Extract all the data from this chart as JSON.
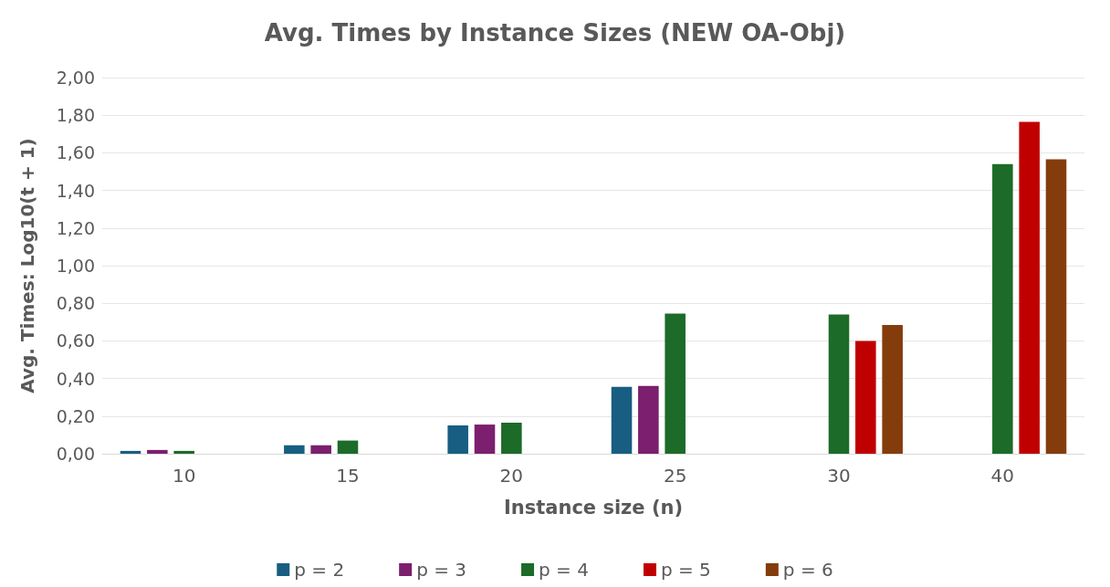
{
  "chart_data": {
    "type": "bar",
    "title": "Avg. Times by Instance Sizes (NEW OA-Obj)",
    "xlabel": "Instance size (n)",
    "ylabel": "Avg. Times: Log10(t + 1)",
    "categories": [
      "10",
      "15",
      "20",
      "25",
      "30",
      "40"
    ],
    "series": [
      {
        "name": "p = 2",
        "color": "#175e82",
        "values": [
          0.015,
          0.045,
          0.15,
          0.355,
          null,
          null
        ]
      },
      {
        "name": "p = 3",
        "color": "#7b1f6e",
        "values": [
          0.02,
          0.045,
          0.155,
          0.36,
          null,
          null
        ]
      },
      {
        "name": "p = 4",
        "color": "#1c6b28",
        "values": [
          0.015,
          0.07,
          0.165,
          0.745,
          0.74,
          1.54
        ]
      },
      {
        "name": "p = 5",
        "color": "#c00000",
        "values": [
          null,
          null,
          null,
          null,
          0.6,
          1.765
        ]
      },
      {
        "name": "p = 6",
        "color": "#843c0c",
        "values": [
          null,
          null,
          null,
          null,
          0.685,
          1.565
        ]
      }
    ],
    "ylim": [
      0,
      2
    ],
    "yticks": [
      {
        "value": 0,
        "label": "0,00"
      },
      {
        "value": 0.2,
        "label": "0,20"
      },
      {
        "value": 0.4,
        "label": "0,40"
      },
      {
        "value": 0.6,
        "label": "0,60"
      },
      {
        "value": 0.8,
        "label": "0,80"
      },
      {
        "value": 1,
        "label": "1,00"
      },
      {
        "value": 1.2,
        "label": "1,20"
      },
      {
        "value": 1.4,
        "label": "1,40"
      },
      {
        "value": 1.6,
        "label": "1,60"
      },
      {
        "value": 1.8,
        "label": "1,80"
      },
      {
        "value": 2,
        "label": "2,00"
      }
    ],
    "grid": "y",
    "legend": "bottom"
  }
}
